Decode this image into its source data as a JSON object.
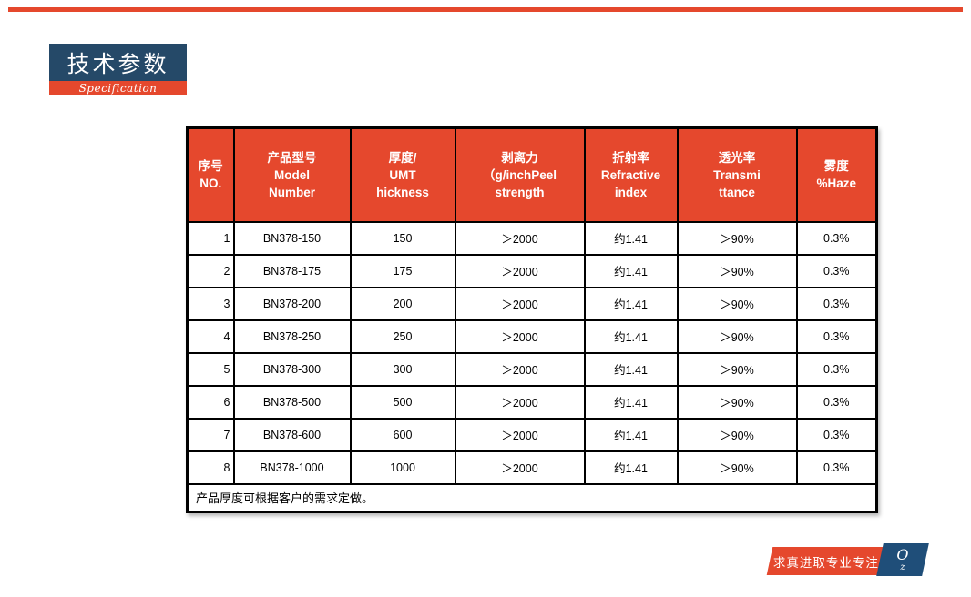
{
  "slide": {
    "title": "技术参数",
    "subtitle": "Specification"
  },
  "colors": {
    "accent_red": "#E5482D",
    "title_navy": "#254968",
    "logo_navy": "#1F4E79",
    "border_black": "#000000"
  },
  "table": {
    "headers": [
      [
        "序号",
        "NO."
      ],
      [
        "产品型号",
        "Model",
        "Number"
      ],
      [
        "厚度/",
        "UMT",
        "hickness"
      ],
      [
        "剥离力",
        "（g/inchPeel",
        "strength"
      ],
      [
        "折射率",
        "Refractive",
        "index"
      ],
      [
        "透光率",
        "Transmi",
        "ttance"
      ],
      [
        "雾度",
        "%Haze"
      ]
    ],
    "rows": [
      [
        "1",
        "BN378-150",
        "150",
        "＞2000",
        "约1.41",
        "＞90%",
        "0.3%"
      ],
      [
        "2",
        "BN378-175",
        "175",
        "＞2000",
        "约1.41",
        "＞90%",
        "0.3%"
      ],
      [
        "3",
        "BN378-200",
        "200",
        "＞2000",
        "约1.41",
        "＞90%",
        "0.3%"
      ],
      [
        "4",
        "BN378-250",
        "250",
        "＞2000",
        "约1.41",
        "＞90%",
        "0.3%"
      ],
      [
        "5",
        "BN378-300",
        "300",
        "＞2000",
        "约1.41",
        "＞90%",
        "0.3%"
      ],
      [
        "6",
        "BN378-500",
        "500",
        "＞2000",
        "约1.41",
        "＞90%",
        "0.3%"
      ],
      [
        "7",
        "BN378-600",
        "600",
        "＞2000",
        "约1.41",
        "＞90%",
        "0.3%"
      ],
      [
        "8",
        "BN378-1000",
        "1000",
        "＞2000",
        "约1.41",
        "＞90%",
        "0.3%"
      ]
    ],
    "note": "产品厚度可根据客户的需求定做。"
  },
  "footer": {
    "slogan": "求真进取专业专注",
    "logo_main": "O",
    "logo_sub": "z"
  }
}
